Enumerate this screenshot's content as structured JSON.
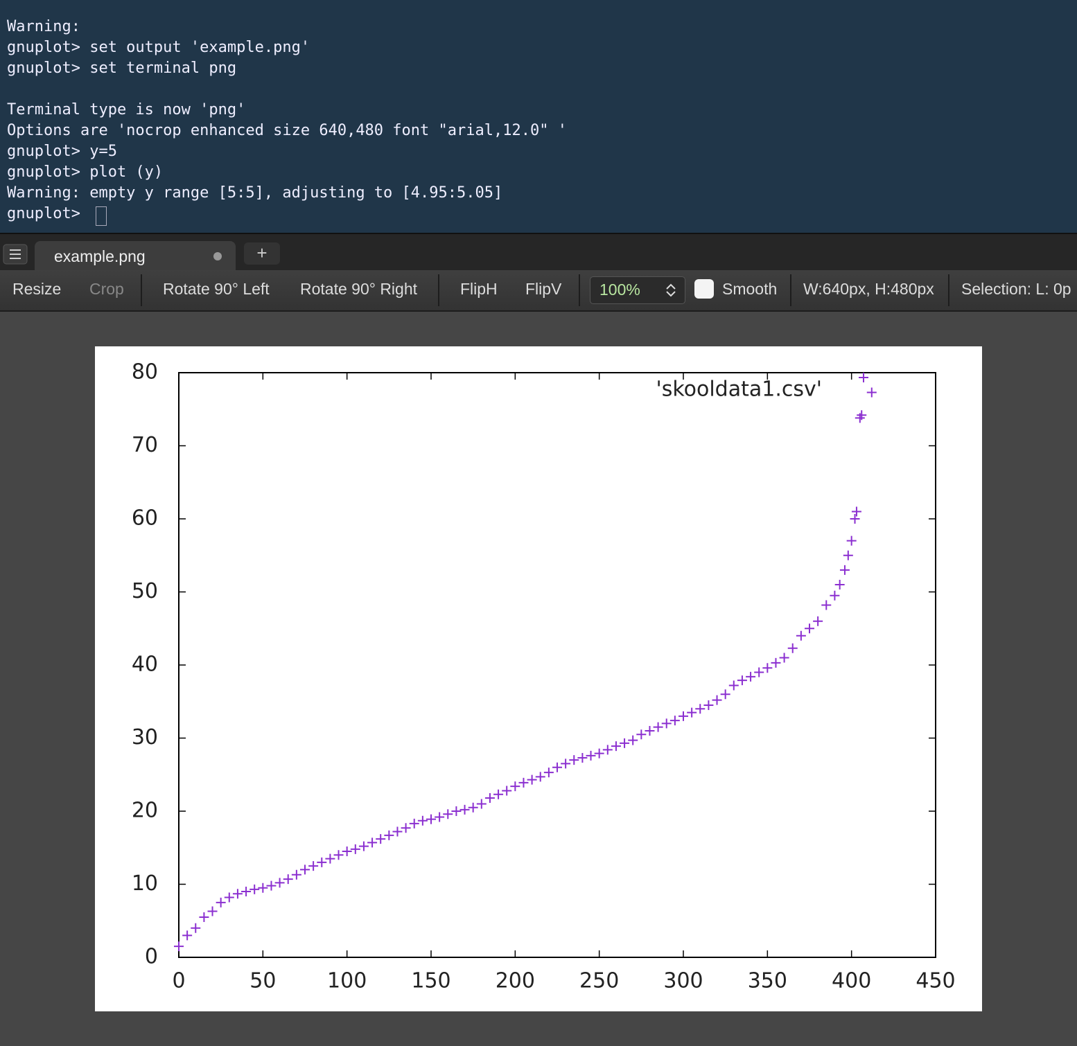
{
  "terminal": {
    "blocks": [
      [
        "Warning:",
        "gnuplot> set output 'example.png'",
        "gnuplot> set terminal png"
      ],
      [
        "Terminal type is now 'png'",
        "Options are 'nocrop enhanced size 640,480 font \"arial,12.0\" '",
        "gnuplot> y=5",
        "gnuplot> plot (y)",
        "Warning: empty y range [5:5], adjusting to [4.95:5.05]",
        "gnuplot> "
      ]
    ]
  },
  "tab": {
    "title": "example.png",
    "new_tab": "+"
  },
  "toolbar": {
    "resize": "Resize",
    "crop": "Crop",
    "rotate_left": "Rotate 90° Left",
    "rotate_right": "Rotate 90° Right",
    "flip_h": "FlipH",
    "flip_v": "FlipV",
    "zoom": "100%",
    "smooth": "Smooth",
    "size": "W:640px, H:480px",
    "selection": "Selection:  L: 0p"
  },
  "chart_data": {
    "type": "scatter",
    "marker": "+",
    "x": [
      0,
      5,
      10,
      15,
      20,
      25,
      30,
      35,
      40,
      45,
      50,
      55,
      60,
      65,
      70,
      75,
      80,
      85,
      90,
      95,
      100,
      105,
      110,
      115,
      120,
      125,
      130,
      135,
      140,
      145,
      150,
      155,
      160,
      165,
      170,
      175,
      180,
      185,
      190,
      195,
      200,
      205,
      210,
      215,
      220,
      225,
      230,
      235,
      240,
      245,
      250,
      255,
      260,
      265,
      270,
      275,
      280,
      285,
      290,
      295,
      300,
      305,
      310,
      315,
      320,
      325,
      330,
      335,
      340,
      345,
      350,
      355,
      360,
      365,
      370,
      375,
      380,
      385,
      390,
      393,
      396,
      398,
      400,
      402,
      403,
      405,
      406,
      412
    ],
    "series": [
      {
        "name": "'skooldata1.csv'",
        "color": "#8b2fd0",
        "values": [
          1.5,
          3,
          4,
          5.5,
          6.3,
          7.5,
          8.2,
          8.7,
          9,
          9.3,
          9.5,
          9.8,
          10.2,
          10.7,
          11.3,
          12,
          12.5,
          13,
          13.5,
          14,
          14.5,
          14.8,
          15.2,
          15.7,
          16.2,
          16.7,
          17.2,
          17.7,
          18.3,
          18.7,
          18.9,
          19.2,
          19.6,
          20,
          20.2,
          20.5,
          21,
          21.8,
          22.3,
          22.8,
          23.4,
          23.9,
          24.3,
          24.7,
          25.3,
          26,
          26.5,
          27,
          27.3,
          27.6,
          27.9,
          28.4,
          28.9,
          29.3,
          29.7,
          30.5,
          31,
          31.5,
          32,
          32.4,
          33,
          33.5,
          34,
          34.5,
          35.2,
          36,
          37.2,
          37.9,
          38.4,
          39,
          39.6,
          40.3,
          41,
          42.3,
          44,
          45,
          46,
          48.2,
          49.5,
          51,
          53,
          55,
          57,
          60,
          61,
          73.8,
          74.2,
          77.3
        ]
      }
    ],
    "xlim": [
      0,
      450
    ],
    "ylim": [
      0,
      80
    ],
    "xticks": [
      0,
      50,
      100,
      150,
      200,
      250,
      300,
      350,
      400,
      450
    ],
    "yticks": [
      0,
      10,
      20,
      30,
      40,
      50,
      60,
      70,
      80
    ],
    "legend": "top-right"
  }
}
